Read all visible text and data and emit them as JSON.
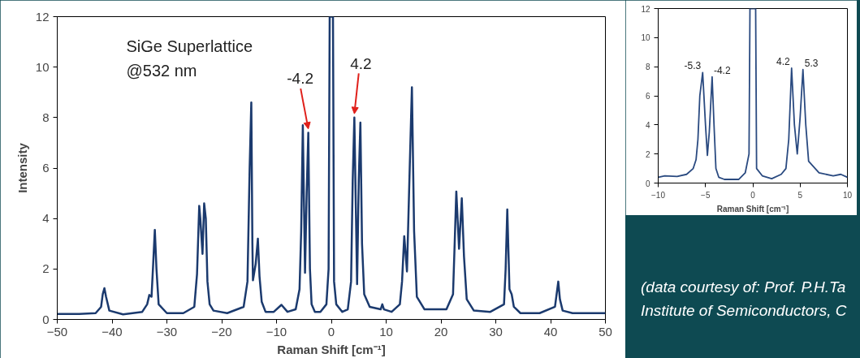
{
  "chart_data": [
    {
      "type": "line",
      "xlabel": "Raman Shift [cm⁻¹]",
      "ylabel": "Intensity",
      "series": [
        {
          "color": "#1b3a6e",
          "x": [
            -50,
            -46,
            -43,
            -42,
            -41.7,
            -41.4,
            -41.1,
            -40.5,
            -38,
            -34.5,
            -33.6,
            -33.2,
            -32.8,
            -32.5,
            -32.2,
            -31.9,
            -31.5,
            -30,
            -27,
            -25,
            -24.5,
            -24.1,
            -23.9,
            -23.5,
            -23.2,
            -22.9,
            -22.6,
            -22.2,
            -21.5,
            -19,
            -16,
            -15.3,
            -14.9,
            -14.6,
            -14.4,
            -14.3,
            -13.8,
            -13.4,
            -13.1,
            -12.7,
            -12,
            -10.5,
            -9.1,
            -8,
            -6.5,
            -5.8,
            -5.5,
            -5.2,
            -4.8,
            -4.5,
            -4.2,
            -3.9,
            -3.6,
            -3,
            -2,
            -0.9,
            -0.5,
            -0.3,
            0.3,
            0.5,
            0.9,
            2,
            3,
            3.6,
            3.9,
            4.2,
            4.7,
            5.0,
            5.3,
            5.6,
            6.0,
            7,
            9,
            9.3,
            9.6,
            11,
            12.5,
            12.9,
            13.3,
            13.8,
            14.3,
            14.7,
            15.1,
            15.6,
            17,
            19.1,
            21,
            22.2,
            22.5,
            22.8,
            23.3,
            23.8,
            24.2,
            24.7,
            26,
            29,
            31.5,
            31.8,
            32.1,
            32.5,
            32.9,
            33.3,
            34.5,
            38,
            40.8,
            41.1,
            41.4,
            41.7,
            42.2,
            44,
            50
          ],
          "values": [
            0.22,
            0.22,
            0.25,
            0.5,
            1.0,
            1.24,
            0.9,
            0.35,
            0.2,
            0.3,
            0.6,
            0.97,
            0.9,
            2.2,
            3.55,
            2.0,
            0.6,
            0.25,
            0.25,
            0.5,
            1.8,
            4.5,
            4.0,
            2.6,
            4.6,
            4.0,
            1.5,
            0.6,
            0.35,
            0.25,
            0.5,
            1.5,
            6.0,
            8.6,
            3.0,
            1.55,
            2.2,
            3.2,
            1.7,
            0.7,
            0.3,
            0.3,
            0.58,
            0.3,
            0.4,
            1.2,
            3.5,
            7.7,
            1.85,
            5.0,
            7.4,
            2.0,
            0.6,
            0.3,
            0.3,
            0.6,
            2.0,
            12,
            12,
            1.5,
            0.6,
            0.3,
            0.4,
            1.5,
            5.5,
            8.0,
            1.4,
            5.5,
            7.8,
            3.0,
            1.0,
            0.5,
            0.4,
            0.6,
            0.4,
            0.3,
            0.6,
            1.5,
            3.3,
            1.9,
            6.0,
            9.2,
            3.5,
            0.9,
            0.4,
            0.4,
            0.4,
            1.0,
            3.0,
            5.07,
            2.8,
            4.8,
            2.5,
            0.8,
            0.35,
            0.3,
            0.6,
            2.0,
            4.36,
            1.2,
            1.0,
            0.5,
            0.25,
            0.25,
            0.5,
            1.0,
            1.5,
            0.8,
            0.35,
            0.25,
            0.25
          ]
        }
      ],
      "xlim": [
        -50,
        50
      ],
      "ylim": [
        0,
        12
      ],
      "xticks": [
        -50,
        -40,
        -30,
        -20,
        -10,
        0,
        10,
        20,
        30,
        40,
        50
      ],
      "yticks": [
        0,
        2,
        4,
        6,
        8,
        10,
        12
      ],
      "grid": false,
      "marker": "none",
      "line_style": "solid",
      "annotations": [
        "SiGe Superlattice\n@532 nm",
        {
          "text": "-4.2",
          "x": -4.2,
          "y": 7.4
        },
        {
          "text": "4.2",
          "x": 4.2,
          "y": 8.0
        }
      ]
    },
    {
      "type": "line",
      "xlabel": "Raman Shift [cm⁻¹]",
      "series": [
        {
          "color": "#2a4a80",
          "x": [
            -10,
            -9.3,
            -8,
            -7,
            -6.3,
            -6,
            -5.8,
            -5.6,
            -5.3,
            -5.0,
            -4.8,
            -4.6,
            -4.3,
            -4.1,
            -3.9,
            -3.6,
            -3,
            -1.5,
            -0.8,
            -0.4,
            -0.3,
            0.3,
            0.4,
            1,
            2,
            3,
            3.5,
            3.8,
            4.1,
            4.4,
            4.7,
            5.0,
            5.3,
            5.6,
            5.9,
            7,
            8.5,
            9.3,
            10
          ],
          "values": [
            0.4,
            0.5,
            0.45,
            0.6,
            1.0,
            1.6,
            3.0,
            6.0,
            7.6,
            4.0,
            1.9,
            3.5,
            7.3,
            4.0,
            1.0,
            0.4,
            0.25,
            0.25,
            0.7,
            2.0,
            12,
            12,
            1.0,
            0.5,
            0.3,
            0.6,
            1.0,
            3.0,
            7.9,
            4.0,
            2.0,
            4.5,
            7.8,
            4.0,
            1.5,
            0.7,
            0.5,
            0.6,
            0.4
          ]
        }
      ],
      "xlim": [
        -10,
        10
      ],
      "ylim": [
        0,
        12
      ],
      "xticks": [
        -10,
        -5,
        0,
        5,
        10
      ],
      "yticks": [
        0,
        2,
        4,
        6,
        8,
        10,
        12
      ],
      "grid": false,
      "marker": "none",
      "line_style": "solid",
      "annotations": [
        {
          "text": "-5.3",
          "x": -5.3,
          "y": 7.6
        },
        {
          "text": "-4.2",
          "x": -4.3,
          "y": 7.3
        },
        {
          "text": "4.2",
          "x": 4.1,
          "y": 7.9
        },
        {
          "text": "5.3",
          "x": 5.3,
          "y": 7.8
        },
        "(data courtesy of: Prof. P.H.Ta",
        "Institute of Semiconductors, C"
      ]
    }
  ]
}
